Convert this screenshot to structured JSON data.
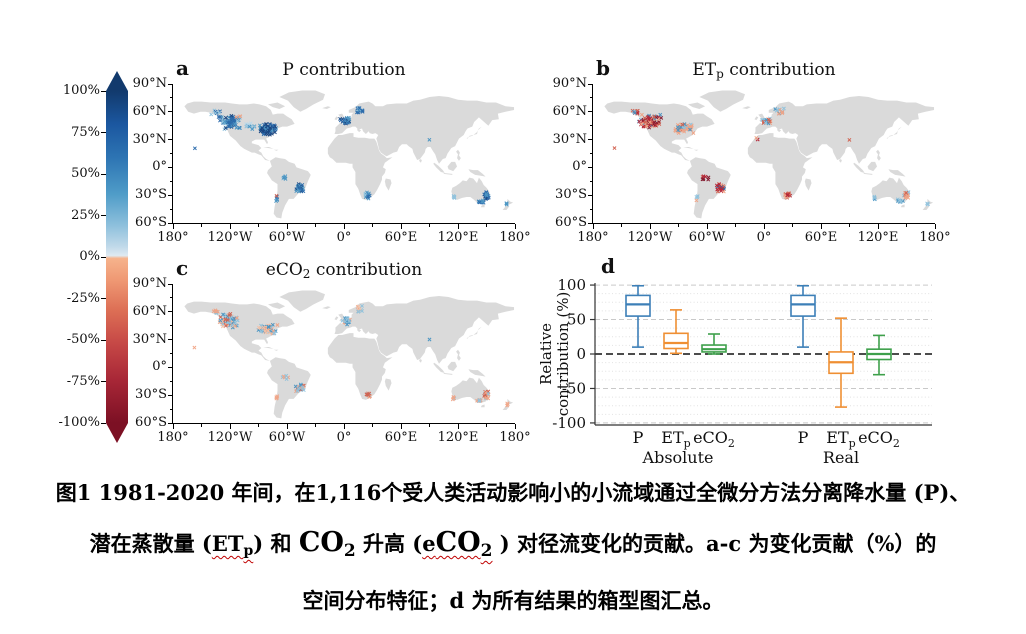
{
  "figure": {
    "background": "#ffffff",
    "land_color": "#dadada",
    "palette": {
      "b1": "#0b3a7a",
      "b2": "#1f63a8",
      "b3": "#4190c0",
      "b4": "#8cc0dc",
      "b5": "#bcd9ea",
      "r1": "#7e0c23",
      "r2": "#b2182b",
      "r3": "#d05a47",
      "r4": "#f0a080",
      "r5": "#f6c0a4"
    },
    "colorbar": {
      "ticks": [
        "100%",
        "75%",
        "50%",
        "25%",
        "0%",
        "-25%",
        "-50%",
        "-75%",
        "-100%"
      ],
      "stops": [
        "#123a6d 0%",
        "#1b57a0 10%",
        "#2d74b3 20%",
        "#4f9cc8 31%",
        "#8abedb 40%",
        "#c2daea 47%",
        "#dfeaf2 49.6%",
        "#f6b38c 50.4%",
        "#ef9873 57%",
        "#dd6f55 66%",
        "#c64846 76%",
        "#a82737 87%",
        "#7c1024 100%"
      ],
      "top_color": "#123a6d",
      "bottom_color": "#7c1024"
    },
    "map_axes": {
      "lat_ticks": [
        "90°N",
        "60°N",
        "30°N",
        "0°",
        "30°S",
        "60°S"
      ],
      "lat_values": [
        90,
        60,
        30,
        0,
        -30,
        -60
      ],
      "lon_ticks": [
        "180°",
        "120°W",
        "60°W",
        "0°",
        "60°E",
        "120°E",
        "180°"
      ],
      "lon_values": [
        -180,
        -120,
        -60,
        0,
        60,
        120,
        180
      ]
    }
  },
  "chart_data": [
    {
      "type": "scatter-map",
      "panel": "a",
      "letter": "a",
      "title_pre": "P",
      "title_sub": "",
      "title_post": " contribution",
      "seed": 7,
      "clusters": [
        [
          -120,
          49,
          13,
          8,
          70,
          [
            "b1",
            "b2",
            "b2",
            "b3",
            "b4"
          ]
        ],
        [
          -81,
          41,
          11,
          6,
          80,
          [
            "b1",
            "b1",
            "b2",
            "b3"
          ]
        ],
        [
          -100,
          45,
          8,
          5,
          16,
          [
            "b4",
            "b3",
            "b5"
          ]
        ],
        [
          -135,
          59,
          6,
          3,
          8,
          [
            "b2",
            "b4"
          ]
        ],
        [
          -157,
          21,
          1,
          1,
          1,
          [
            "b2"
          ]
        ],
        [
          -110,
          53,
          6,
          3,
          3,
          [
            "r4"
          ]
        ],
        [
          2,
          50,
          7,
          4,
          22,
          [
            "b1",
            "b2",
            "b3"
          ]
        ],
        [
          16,
          62,
          6,
          5,
          14,
          [
            "b2",
            "b3",
            "b4"
          ]
        ],
        [
          -46,
          -22,
          5,
          5,
          30,
          [
            "b1",
            "b2",
            "b3"
          ]
        ],
        [
          -62,
          -11,
          4,
          3,
          6,
          [
            "b3",
            "b4"
          ]
        ],
        [
          -71,
          -34,
          1.5,
          4,
          5,
          [
            "b2",
            "b3"
          ]
        ],
        [
          -71,
          -31,
          0.5,
          1,
          1,
          [
            "r3"
          ]
        ],
        [
          25,
          -30,
          4,
          4,
          14,
          [
            "b3",
            "b4",
            "b2"
          ]
        ],
        [
          150,
          -30,
          3,
          5,
          28,
          [
            "b1",
            "b2",
            "b2",
            "b3"
          ]
        ],
        [
          144,
          -37,
          4,
          2,
          10,
          [
            "b2",
            "b3"
          ]
        ],
        [
          116,
          -32,
          2,
          2,
          5,
          [
            "b2",
            "b4"
          ]
        ],
        [
          90,
          30,
          0.5,
          0.5,
          1,
          [
            "b3"
          ]
        ],
        [
          172,
          -40,
          2,
          2,
          3,
          [
            "b3"
          ]
        ]
      ]
    },
    {
      "type": "scatter-map",
      "panel": "b",
      "letter": "b",
      "title_pre": "ET",
      "title_sub": "p",
      "title_post": " contribution",
      "seed": 13,
      "clusters": [
        [
          -120,
          50,
          13,
          8,
          75,
          [
            "r1",
            "r2",
            "r2",
            "r3",
            "r4",
            "b3"
          ]
        ],
        [
          -84,
          42,
          11,
          6,
          60,
          [
            "r3",
            "r4",
            "r4",
            "b4",
            "b3"
          ]
        ],
        [
          -135,
          60,
          5,
          3,
          8,
          [
            "r2",
            "r3",
            "b3"
          ]
        ],
        [
          -157,
          21,
          1,
          1,
          1,
          [
            "r3"
          ]
        ],
        [
          2,
          50,
          7,
          4,
          20,
          [
            "r4",
            "r3",
            "b4",
            "b3"
          ]
        ],
        [
          16,
          62,
          6,
          5,
          12,
          [
            "r4",
            "b4",
            "b3"
          ]
        ],
        [
          -46,
          -22,
          5,
          5,
          28,
          [
            "r2",
            "r3",
            "r4",
            "b2"
          ]
        ],
        [
          -62,
          -11,
          4,
          3,
          8,
          [
            "r1",
            "r2",
            "r3"
          ]
        ],
        [
          -71,
          -34,
          1.5,
          4,
          4,
          [
            "r4",
            "b4"
          ]
        ],
        [
          25,
          -30,
          4,
          4,
          13,
          [
            "r2",
            "r3",
            "r4"
          ]
        ],
        [
          150,
          -29,
          3,
          5,
          22,
          [
            "r4",
            "r3",
            "b4"
          ]
        ],
        [
          143,
          -36,
          4,
          2,
          10,
          [
            "b3",
            "b4"
          ]
        ],
        [
          116,
          -33,
          2,
          2,
          5,
          [
            "b3",
            "b4"
          ]
        ],
        [
          90,
          30,
          0.5,
          0.5,
          1,
          [
            "r3"
          ]
        ],
        [
          172,
          -40,
          2,
          2,
          3,
          [
            "b4"
          ]
        ],
        [
          -8,
          31,
          2,
          2,
          2,
          [
            "r2",
            "r4"
          ]
        ]
      ]
    },
    {
      "type": "scatter-map",
      "panel": "c",
      "letter": "c",
      "title_pre": "eCO",
      "title_sub": "2",
      "title_post": " contribution",
      "seed": 29,
      "clusters": [
        [
          -120,
          50,
          13,
          8,
          70,
          [
            "r4",
            "r5",
            "b4",
            "r3",
            "b3"
          ]
        ],
        [
          -80,
          42,
          11,
          6,
          60,
          [
            "b4",
            "b4",
            "b3",
            "r4",
            "r5"
          ]
        ],
        [
          -135,
          60,
          5,
          3,
          8,
          [
            "r4",
            "b4"
          ]
        ],
        [
          -157,
          21,
          1,
          1,
          1,
          [
            "r4"
          ]
        ],
        [
          2,
          50,
          7,
          4,
          18,
          [
            "b4",
            "r4",
            "b3"
          ]
        ],
        [
          16,
          62,
          6,
          5,
          12,
          [
            "r4",
            "b4",
            "r5"
          ]
        ],
        [
          -46,
          -22,
          5,
          5,
          26,
          [
            "r4",
            "r3",
            "b4",
            "b3"
          ]
        ],
        [
          -62,
          -11,
          4,
          3,
          6,
          [
            "r4",
            "b4"
          ]
        ],
        [
          -71,
          -33,
          1.5,
          4,
          4,
          [
            "b2",
            "r4"
          ]
        ],
        [
          25,
          -30,
          4,
          4,
          13,
          [
            "r3",
            "r4",
            "b4"
          ]
        ],
        [
          150,
          -29,
          3,
          5,
          24,
          [
            "r4",
            "r3",
            "b4"
          ]
        ],
        [
          143,
          -36,
          4,
          2,
          8,
          [
            "r4",
            "b4"
          ]
        ],
        [
          116,
          -33,
          2,
          2,
          5,
          [
            "b4",
            "r4"
          ]
        ],
        [
          90,
          30,
          0.5,
          0.5,
          1,
          [
            "b3"
          ]
        ],
        [
          172,
          -40,
          2,
          2,
          3,
          [
            "r4"
          ]
        ]
      ]
    },
    {
      "type": "boxplot",
      "panel": "d",
      "letter": "d",
      "ylabel_lines": [
        "Relative",
        "contribution (%)"
      ],
      "yticks": [
        100,
        50,
        0,
        -50,
        -100
      ],
      "ylim": [
        -103,
        103
      ],
      "zero_line_at": 0,
      "grid": "dotted horizontal, dashed majors",
      "groups": [
        {
          "label": "Absolute",
          "boxes": [
            {
              "label": "P",
              "sub": "",
              "color": "#3c7fb7",
              "whislo": 10,
              "q1": 55,
              "med": 72,
              "q3": 85,
              "whishi": 99
            },
            {
              "label": "ET",
              "sub": "p",
              "color": "#ef8f33",
              "whislo": 1,
              "q1": 8,
              "med": 16,
              "q3": 30,
              "whishi": 64
            },
            {
              "label": "eCO",
              "sub": "2",
              "color": "#3ea04b",
              "whislo": 0,
              "q1": 3,
              "med": 7,
              "q3": 13,
              "whishi": 29
            }
          ]
        },
        {
          "label": "Real",
          "boxes": [
            {
              "label": "P",
              "sub": "",
              "color": "#3c7fb7",
              "whislo": 10,
              "q1": 55,
              "med": 72,
              "q3": 85,
              "whishi": 99
            },
            {
              "label": "ET",
              "sub": "p",
              "color": "#ef8f33",
              "whislo": -77,
              "q1": -28,
              "med": -12,
              "q3": 3,
              "whishi": 52
            },
            {
              "label": "eCO",
              "sub": "2",
              "color": "#3ea04b",
              "whislo": -30,
              "q1": -8,
              "med": 0,
              "q3": 7,
              "whishi": 27
            }
          ]
        }
      ]
    }
  ],
  "caption": {
    "lines": [
      {
        "segments": [
          {
            "t": "图1 1981-2020 年间，在1,116个受人类活动影响小的小流域通过全微分方法分离降水量 (P)、"
          }
        ]
      },
      {
        "segments": [
          {
            "t": "潜在蒸散量 ("
          },
          {
            "t": "ET",
            "wavy": 1
          },
          {
            "t": "p",
            "sub": 1,
            "wavy": 1
          },
          {
            "t": ") 和 "
          },
          {
            "t": "CO",
            "big": 1
          },
          {
            "t": "2",
            "bigsub": 1
          },
          {
            "t": " 升高 ("
          },
          {
            "t": "e",
            "wavy": 1
          },
          {
            "t": "CO",
            "big": 1,
            "wavy": 1
          },
          {
            "t": "2",
            "bigsub": 1,
            "wavy": 1
          },
          {
            "t": " ) 对径流变化的贡献。a-c 为变化贡献（%）的"
          }
        ]
      },
      {
        "segments": [
          {
            "t": "空间分布特征；d 为所有结果的箱型图汇总。"
          }
        ]
      }
    ]
  }
}
